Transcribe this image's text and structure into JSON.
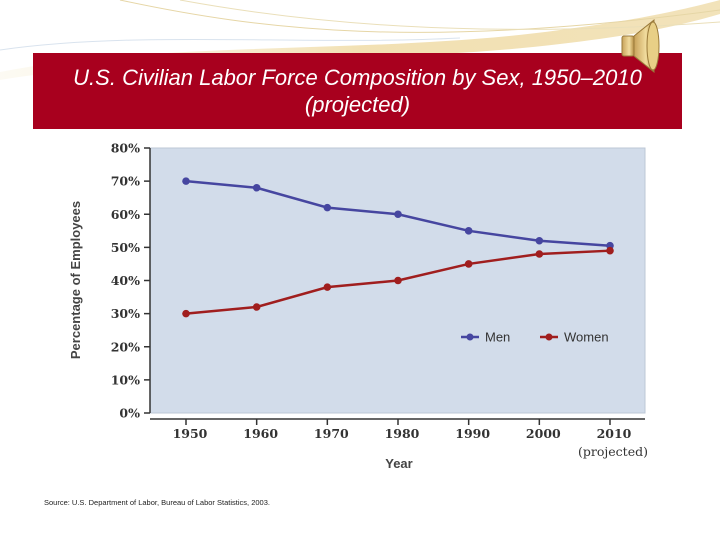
{
  "slide": {
    "title_line1": "U.S. Civilian Labor Force Composition by Sex, 1950–2010",
    "title_line2": "(projected)",
    "source": "Source: U.S. Department of Labor, Bureau of Labor Statistics, 2003.",
    "speaker_icon": "speaker-icon"
  },
  "colors": {
    "title_bg": "#a8001e",
    "plot_bg": "#d2dcea",
    "men": "#4646a0",
    "women": "#a01e1e"
  },
  "chart_data": {
    "type": "line",
    "title": "",
    "xlabel": "Year",
    "ylabel": "Percentage of Employees",
    "categories": [
      "1950",
      "1960",
      "1970",
      "1980",
      "1990",
      "2000",
      "2010"
    ],
    "category_note": "(projected)",
    "yticks": [
      "0%",
      "10%",
      "20%",
      "30%",
      "40%",
      "50%",
      "60%",
      "70%",
      "80%"
    ],
    "ylim": [
      0,
      80
    ],
    "legend_position": "right, inside plot",
    "series": [
      {
        "name": "Men",
        "values": [
          70,
          68,
          62,
          60,
          55,
          52,
          50.5
        ]
      },
      {
        "name": "Women",
        "values": [
          30,
          32,
          38,
          40,
          45,
          48,
          49
        ]
      }
    ]
  }
}
